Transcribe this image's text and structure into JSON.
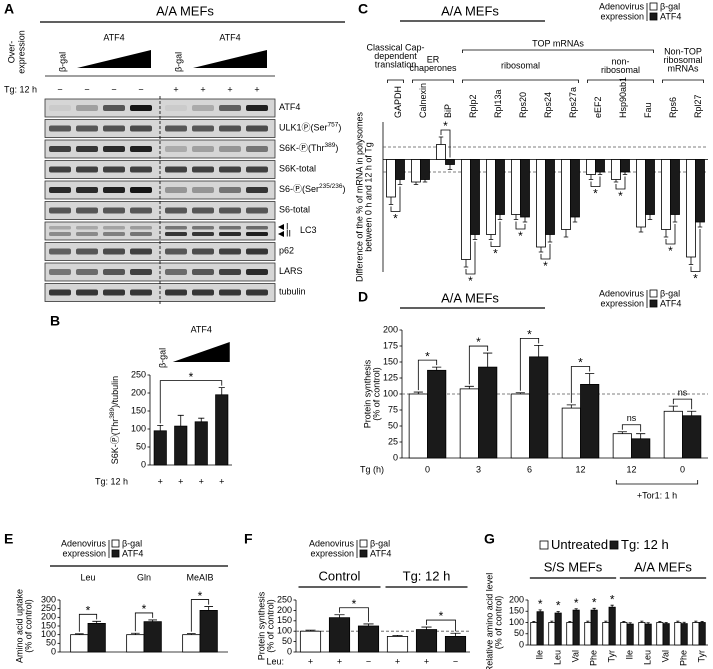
{
  "blot": {
    "label": "A",
    "title": "A/A MEFs",
    "overexpression_label": [
      "Over-",
      "expression"
    ],
    "lane_headers": {
      "control_1": "β-gal",
      "atf4_1": "ATF4",
      "control_2": "β-gal",
      "atf4_2": "ATF4"
    },
    "tg_label": "Tg: 12 h",
    "tg_signs": [
      "−",
      "−",
      "−",
      "−",
      "+",
      "+",
      "+",
      "+"
    ],
    "bands": [
      {
        "main": "ATF4"
      },
      {
        "main": "ULK1Ⓟ(Ser",
        "sup": "757",
        "end": ")"
      },
      {
        "main": "S6K-Ⓟ(Thr",
        "sup": "389",
        "end": ")"
      },
      {
        "main": "S6K-total"
      },
      {
        "main": "S6-Ⓟ(Ser",
        "sup": "235/236",
        "end": ")"
      },
      {
        "main": "S6-total"
      },
      {
        "main": "LC3"
      },
      {
        "main": "p62"
      },
      {
        "main": "LARS"
      },
      {
        "main": "tubulin"
      }
    ],
    "lc3_forms": [
      "I",
      "II"
    ]
  },
  "chart_data": [
    {
      "type": "bar",
      "label": "B",
      "categories": [
        "β-gal",
        null,
        null,
        null
      ],
      "group_label": "ATF4",
      "values": [
        95,
        108,
        120,
        195
      ],
      "errors": [
        15,
        30,
        10,
        20
      ],
      "color": "#1a1a1a",
      "ylabel": {
        "main": "S6K-Ⓟ(Thr",
        "sup": "389",
        "end": ")/tubulin"
      },
      "ylim": [
        0,
        250
      ],
      "yticks": [
        0,
        50,
        100,
        150,
        200,
        250
      ],
      "x_row_label": "Tg: 12 h",
      "x_row": [
        "+",
        "+",
        "+",
        "+"
      ],
      "annotations": [
        "*"
      ]
    },
    {
      "type": "grouped_bar",
      "label": "C",
      "title": "A/A MEFs",
      "legend_title": [
        "Adenovirus",
        "expression"
      ],
      "categories": [
        "GAPDH",
        "Calnexin",
        "BiP",
        "Rplp2",
        "Rpl13a",
        "Rps20",
        "Rps24",
        "Rps27a",
        "eEF2",
        "Hsp90ab1",
        "Fau",
        "Rps6",
        "Rpl27"
      ],
      "groups": [
        [
          "Classical Cap-",
          "dependent",
          "translation"
        ],
        [
          "ER",
          "chaperones"
        ],
        [
          "TOP mRNAs"
        ],
        [
          "ribosomal"
        ],
        [
          "non-",
          "ribosomal"
        ],
        [
          "Non-TOP",
          "ribosomal",
          "mRNAs"
        ]
      ],
      "series": [
        {
          "name": "β-gal",
          "color": "#ffffff",
          "values": [
            -15,
            -9,
            6,
            -40,
            -30,
            -22,
            -35,
            -28,
            -6,
            -8,
            -27,
            -28,
            -39
          ],
          "errors": [
            3,
            1,
            3,
            3,
            2,
            2,
            2,
            3,
            2,
            1,
            2,
            3,
            3
          ]
        },
        {
          "name": "ATF4",
          "color": "#1a1a1a",
          "values": [
            -8,
            -8,
            -2,
            -30,
            -22,
            -23,
            -30,
            -23,
            -5,
            -5,
            -22,
            -22,
            -25
          ],
          "errors": [
            2,
            1,
            2,
            2,
            2,
            2,
            3,
            2,
            1,
            1,
            2,
            3,
            2
          ]
        }
      ],
      "ylabel": [
        "Difference of the % of mRNA in polysomes",
        "between 0 h and 12 h of Tg"
      ],
      "ylim": [
        -45,
        15
      ],
      "reference_lines": [
        5,
        -5
      ],
      "annotations": [
        "*",
        "*",
        "*",
        "*",
        "*",
        "*",
        "*",
        "*",
        "*",
        "*"
      ]
    },
    {
      "type": "grouped_bar",
      "label": "D",
      "title": "A/A MEFs",
      "legend_title": [
        "Adenovirus",
        "expression"
      ],
      "categories": [
        "0",
        "3",
        "6",
        "12",
        "12",
        "0"
      ],
      "xlabel": "Tg (h)",
      "bracket_label": "+Tor1: 1 h",
      "series": [
        {
          "name": "β-gal",
          "color": "#ffffff",
          "values": [
            100,
            108,
            100,
            78,
            38,
            73
          ],
          "errors": [
            3,
            4,
            2,
            5,
            3,
            8
          ]
        },
        {
          "name": "ATF4",
          "color": "#1a1a1a",
          "values": [
            137,
            142,
            158,
            115,
            30,
            66
          ],
          "errors": [
            5,
            22,
            18,
            17,
            8,
            7
          ]
        }
      ],
      "ylabel": [
        "Protein synthesis",
        "(% of control)"
      ],
      "ylim": [
        0,
        200
      ],
      "yticks": [
        0,
        25,
        50,
        75,
        100,
        125,
        150,
        175,
        200
      ],
      "reference_lines": [
        100
      ],
      "annotations": [
        "*",
        "*",
        "*",
        "*",
        "ns",
        "ns"
      ]
    },
    {
      "type": "grouped_bar",
      "label": "E",
      "legend_title": [
        "Adenovirus",
        "expression"
      ],
      "categories": [
        "Leu",
        "Gln",
        "MeAIB"
      ],
      "series": [
        {
          "name": "β-gal",
          "color": "#ffffff",
          "values": [
            100,
            100,
            100
          ],
          "errors": [
            5,
            8,
            6
          ]
        },
        {
          "name": "ATF4",
          "color": "#1a1a1a",
          "values": [
            165,
            175,
            240
          ],
          "errors": [
            12,
            10,
            22
          ]
        }
      ],
      "ylabel": [
        "Amino acid uptake",
        "(% of control)"
      ],
      "ylim": [
        0,
        300
      ],
      "yticks": [
        0,
        50,
        100,
        150,
        200,
        250,
        300
      ],
      "annotations": [
        "*",
        "*",
        "*"
      ]
    },
    {
      "type": "bar",
      "label": "F",
      "legend_title": [
        "Adenovirus",
        "expression"
      ],
      "legend": [
        {
          "name": "β-gal",
          "color": "#ffffff"
        },
        {
          "name": "ATF4",
          "color": "#1a1a1a"
        }
      ],
      "groups": [
        "Control",
        "Tg: 12 h"
      ],
      "categories": [
        "+",
        "+",
        "−",
        "+",
        "+",
        "−"
      ],
      "x_row_label": "Leu:",
      "values": [
        100,
        165,
        125,
        75,
        108,
        75
      ],
      "errors": [
        5,
        14,
        10,
        5,
        12,
        15
      ],
      "colors": [
        "#ffffff",
        "#1a1a1a",
        "#1a1a1a",
        "#ffffff",
        "#1a1a1a",
        "#1a1a1a"
      ],
      "ylabel": [
        "Protein synthesis",
        "(% of control)"
      ],
      "ylim": [
        0,
        250
      ],
      "yticks": [
        0,
        50,
        100,
        150,
        200,
        250
      ],
      "reference_lines": [
        100
      ],
      "annotations": [
        "*",
        "*"
      ]
    },
    {
      "type": "grouped_bar",
      "label": "G",
      "groups": [
        "S/S MEFs",
        "A/A MEFs"
      ],
      "categories": [
        "Ile",
        "Leu",
        "Val",
        "Phe",
        "Tyr",
        "Ile",
        "Leu",
        "Val",
        "Phe",
        "Tyr"
      ],
      "series": [
        {
          "name": "Untreated",
          "color": "#ffffff",
          "values": [
            100,
            100,
            100,
            100,
            100,
            100,
            100,
            100,
            100,
            100
          ],
          "errors": [
            5,
            6,
            5,
            6,
            6,
            5,
            6,
            5,
            6,
            6
          ]
        },
        {
          "name": "Tg: 12 h",
          "color": "#1a1a1a",
          "values": [
            148,
            142,
            155,
            155,
            168,
            93,
            93,
            95,
            95,
            100
          ],
          "errors": [
            8,
            7,
            6,
            8,
            9,
            6,
            6,
            5,
            6,
            5
          ]
        }
      ],
      "ylabel": [
        "Relative amino acid level",
        "(% of control)"
      ],
      "ylim": [
        0,
        200
      ],
      "yticks": [
        0,
        50,
        100,
        150,
        200
      ],
      "annotations": [
        "*",
        "*",
        "*",
        "*",
        "*"
      ]
    }
  ]
}
